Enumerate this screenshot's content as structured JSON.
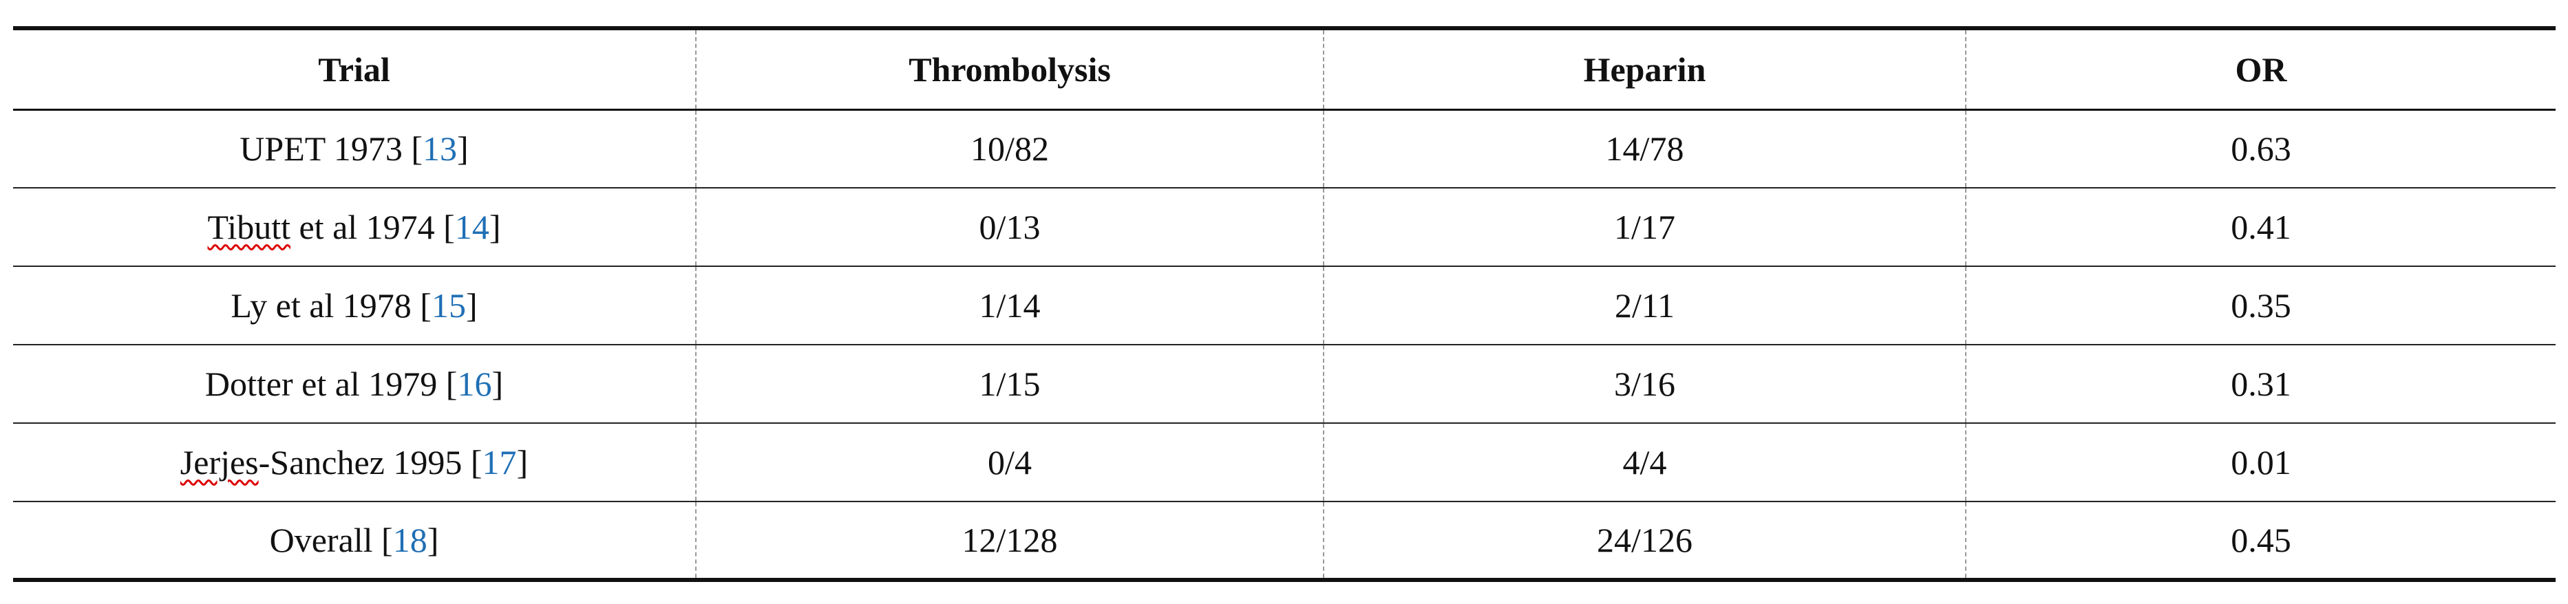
{
  "table": {
    "header": [
      "Trial",
      "Thrombolysis",
      "Heparin",
      "OR"
    ],
    "rows": [
      [
        [
          {
            "text": "UPET 1973 ["
          },
          {
            "text": "13",
            "ref": true
          },
          {
            "text": "]"
          }
        ],
        "10/82",
        "14/78",
        "0.63"
      ],
      [
        [
          {
            "text": "Tibutt",
            "spell": true
          },
          {
            "text": " et al 1974 ["
          },
          {
            "text": "14",
            "ref": true
          },
          {
            "text": "]"
          }
        ],
        "0/13",
        "1/17",
        "0.41"
      ],
      [
        [
          {
            "text": "Ly et al 1978 ["
          },
          {
            "text": "15",
            "ref": true
          },
          {
            "text": "]"
          }
        ],
        "1/14",
        "2/11",
        "0.35"
      ],
      [
        [
          {
            "text": "Dotter et al 1979 ["
          },
          {
            "text": "16",
            "ref": true
          },
          {
            "text": "]"
          }
        ],
        "1/15",
        "3/16",
        "0.31"
      ],
      [
        [
          {
            "text": "Jerjes",
            "spell": true
          },
          {
            "text": "-Sanchez 1995 ["
          },
          {
            "text": "17",
            "ref": true
          },
          {
            "text": "]"
          }
        ],
        "0/4",
        "4/4",
        "0.01"
      ],
      [
        [
          {
            "text": "Overall ["
          },
          {
            "text": "18",
            "ref": true
          },
          {
            "text": "]"
          }
        ],
        "12/128",
        "24/126",
        "0.45"
      ]
    ]
  }
}
